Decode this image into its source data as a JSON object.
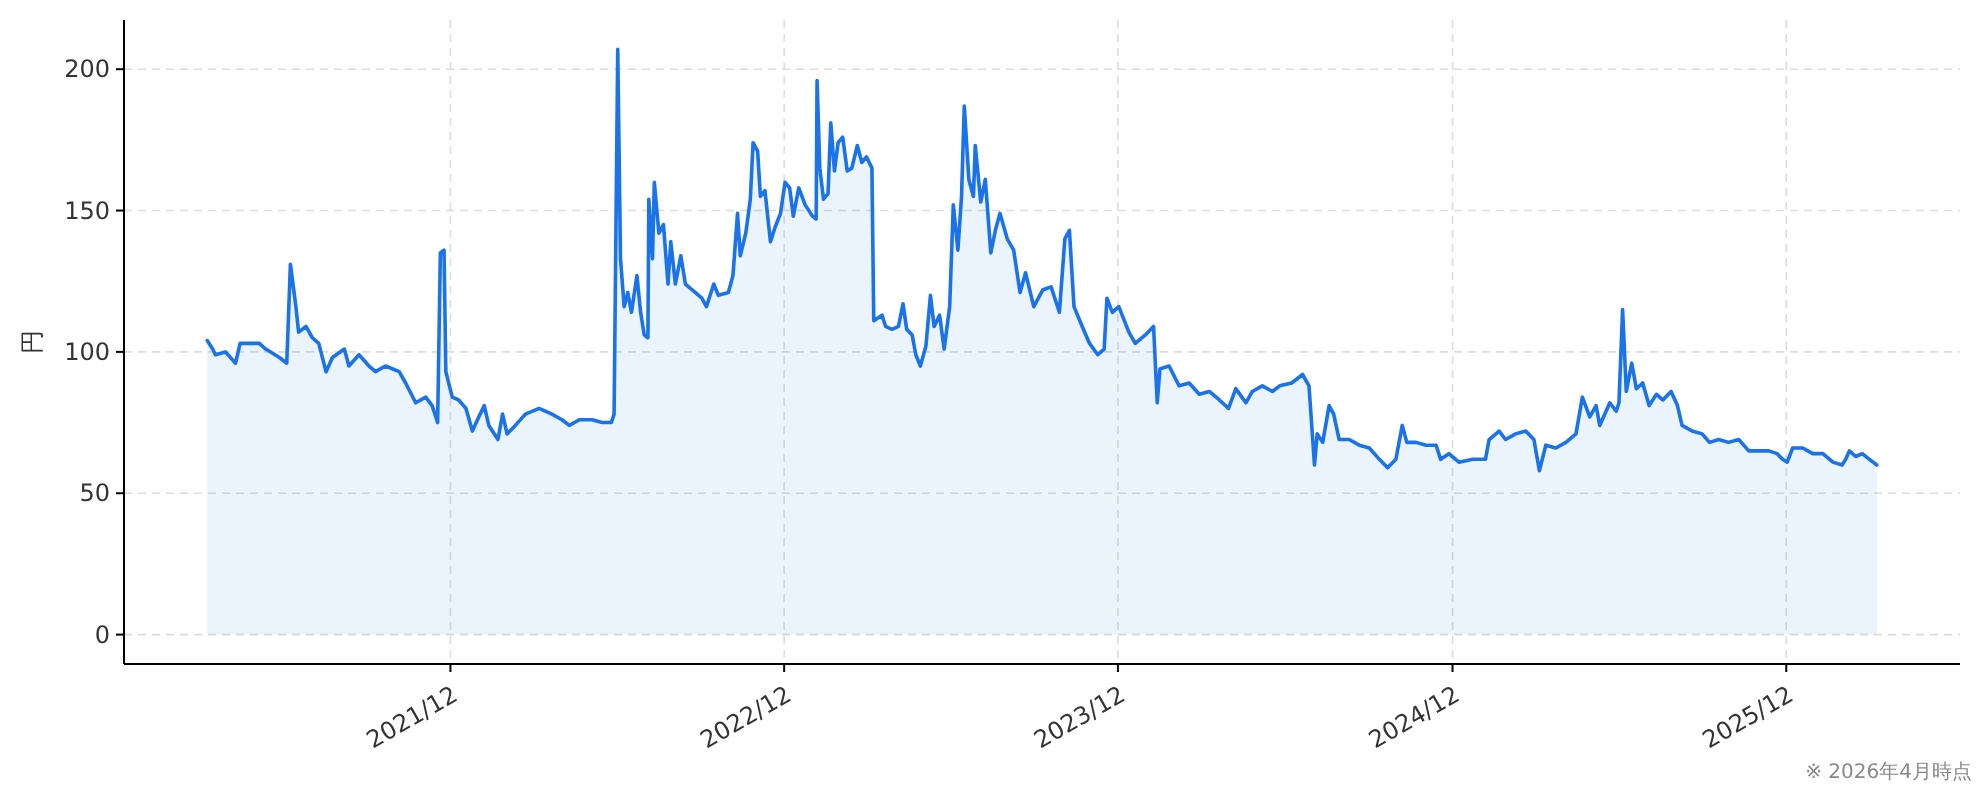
{
  "chart_data": {
    "type": "area",
    "ylabel": "円",
    "annotations": [
      "※ 2026年4月時点"
    ],
    "x": [
      "2021-03-10",
      "2021-03-16",
      "2021-03-19",
      "2021-03-30",
      "2021-04-10",
      "2021-04-15",
      "2021-05-06",
      "2021-05-13",
      "2021-05-28",
      "2021-06-05",
      "2021-06-09",
      "2021-06-15",
      "2021-06-18",
      "2021-06-26",
      "2021-07-03",
      "2021-07-10",
      "2021-07-18",
      "2021-07-25",
      "2021-08-07",
      "2021-08-12",
      "2021-08-23",
      "2021-09-03",
      "2021-09-10",
      "2021-09-21",
      "2021-10-06",
      "2021-10-13",
      "2021-10-24",
      "2021-11-04",
      "2021-11-11",
      "2021-11-17",
      "2021-11-20",
      "2021-11-24",
      "2021-11-26",
      "2021-12-03",
      "2021-12-10",
      "2021-12-18",
      "2021-12-25",
      "2022-01-01",
      "2022-01-07",
      "2022-01-12",
      "2022-01-22",
      "2022-01-27",
      "2022-02-01",
      "2022-02-10",
      "2022-02-21",
      "2022-03-08",
      "2022-03-22",
      "2022-04-02",
      "2022-04-10",
      "2022-04-21",
      "2022-05-05",
      "2022-05-16",
      "2022-05-26",
      "2022-05-29",
      "2022-06-02",
      "2022-06-05",
      "2022-06-09",
      "2022-06-13",
      "2022-06-17",
      "2022-06-23",
      "2022-06-27",
      "2022-07-01",
      "2022-07-05",
      "2022-07-06",
      "2022-07-10",
      "2022-07-12",
      "2022-07-17",
      "2022-07-22",
      "2022-07-27",
      "2022-07-30",
      "2022-08-04",
      "2022-08-10",
      "2022-08-15",
      "2022-08-26",
      "2022-09-02",
      "2022-09-07",
      "2022-09-15",
      "2022-09-20",
      "2022-10-01",
      "2022-10-06",
      "2022-10-11",
      "2022-10-14",
      "2022-10-20",
      "2022-10-25",
      "2022-10-28",
      "2022-11-02",
      "2022-11-05",
      "2022-11-10",
      "2022-11-16",
      "2022-11-21",
      "2022-11-27",
      "2022-12-02",
      "2022-12-07",
      "2022-12-11",
      "2022-12-17",
      "2022-12-24",
      "2023-01-01",
      "2023-01-05",
      "2023-01-06",
      "2023-01-09",
      "2023-01-13",
      "2023-01-18",
      "2023-01-21",
      "2023-01-25",
      "2023-01-29",
      "2023-02-03",
      "2023-02-08",
      "2023-02-13",
      "2023-02-19",
      "2023-02-24",
      "2023-03-01",
      "2023-03-07",
      "2023-03-09",
      "2023-03-18",
      "2023-03-22",
      "2023-03-29",
      "2023-04-05",
      "2023-04-10",
      "2023-04-14",
      "2023-04-20",
      "2023-04-24",
      "2023-04-29",
      "2023-05-05",
      "2023-05-10",
      "2023-05-14",
      "2023-05-20",
      "2023-05-25",
      "2023-05-31",
      "2023-06-04",
      "2023-06-09",
      "2023-06-13",
      "2023-06-16",
      "2023-06-21",
      "2023-06-26",
      "2023-06-28",
      "2023-07-04",
      "2023-07-09",
      "2023-07-15",
      "2023-07-20",
      "2023-07-25",
      "2023-08-02",
      "2023-08-09",
      "2023-08-16",
      "2023-08-22",
      "2023-08-31",
      "2023-09-10",
      "2023-09-19",
      "2023-09-28",
      "2023-10-04",
      "2023-10-09",
      "2023-10-14",
      "2023-10-23",
      "2023-10-31",
      "2023-11-09",
      "2023-11-16",
      "2023-11-19",
      "2023-11-25",
      "2023-12-02",
      "2023-12-13",
      "2023-12-20",
      "2023-12-31",
      "2024-01-09",
      "2024-01-13",
      "2024-01-16",
      "2024-01-26",
      "2024-02-06",
      "2024-02-17",
      "2024-02-28",
      "2024-03-10",
      "2024-03-21",
      "2024-03-31",
      "2024-04-08",
      "2024-04-19",
      "2024-04-26",
      "2024-05-07",
      "2024-05-18",
      "2024-05-26",
      "2024-06-08",
      "2024-06-20",
      "2024-06-27",
      "2024-07-03",
      "2024-07-06",
      "2024-07-12",
      "2024-07-19",
      "2024-07-24",
      "2024-07-30",
      "2024-08-10",
      "2024-08-21",
      "2024-09-01",
      "2024-09-12",
      "2024-09-21",
      "2024-09-30",
      "2024-10-07",
      "2024-10-12",
      "2024-10-22",
      "2024-11-02",
      "2024-11-13",
      "2024-11-18",
      "2024-11-27",
      "2024-12-08",
      "2024-12-23",
      "2025-01-06",
      "2025-01-10",
      "2025-01-21",
      "2025-01-28",
      "2025-02-08",
      "2025-02-19",
      "2025-02-28",
      "2025-03-06",
      "2025-03-13",
      "2025-03-24",
      "2025-04-04",
      "2025-04-15",
      "2025-04-22",
      "2025-04-30",
      "2025-05-07",
      "2025-05-11",
      "2025-05-22",
      "2025-05-29",
      "2025-06-01",
      "2025-06-05",
      "2025-06-09",
      "2025-06-15",
      "2025-06-20",
      "2025-06-27",
      "2025-07-04",
      "2025-07-12",
      "2025-07-19",
      "2025-07-28",
      "2025-08-04",
      "2025-08-09",
      "2025-08-20",
      "2025-08-31",
      "2025-09-08",
      "2025-09-18",
      "2025-09-29",
      "2025-10-10",
      "2025-10-21",
      "2025-11-01",
      "2025-11-12",
      "2025-11-21",
      "2025-11-27",
      "2025-12-02",
      "2025-12-08",
      "2025-12-19",
      "2025-12-30",
      "2026-01-10",
      "2026-01-21",
      "2026-01-31",
      "2026-02-04",
      "2026-02-08",
      "2026-02-15",
      "2026-02-22",
      "2026-03-02",
      "2026-03-10"
    ],
    "series": [
      {
        "color": "#1a73e8",
        "values": [
          104,
          101,
          99,
          100,
          96,
          103,
          103,
          101,
          98,
          96,
          131,
          116,
          107,
          109,
          105,
          103,
          93,
          98,
          101,
          95,
          99,
          95,
          93,
          95,
          93,
          89,
          82,
          84,
          81,
          75,
          135,
          136,
          93,
          84,
          83,
          80,
          72,
          77,
          81,
          74,
          69,
          78,
          71,
          74,
          78,
          80,
          78,
          76,
          74,
          76,
          76,
          75,
          75,
          78,
          207,
          133,
          116,
          121,
          114,
          127,
          114,
          106,
          105,
          154,
          133,
          160,
          142,
          145,
          124,
          139,
          124,
          134,
          124,
          121,
          119,
          116,
          124,
          120,
          121,
          127,
          149,
          134,
          142,
          154,
          174,
          171,
          155,
          157,
          139,
          144,
          149,
          160,
          158,
          148,
          158,
          152,
          148,
          147,
          196,
          165,
          154,
          156,
          181,
          164,
          174,
          176,
          164,
          165,
          173,
          167,
          169,
          165,
          111,
          113,
          109,
          108,
          109,
          117,
          108,
          106,
          99,
          95,
          102,
          120,
          109,
          113,
          101,
          116,
          152,
          136,
          155,
          187,
          161,
          155,
          173,
          153,
          161,
          135,
          143,
          149,
          140,
          136,
          121,
          128,
          116,
          122,
          123,
          114,
          140,
          143,
          116,
          109,
          103,
          99,
          101,
          119,
          114,
          116,
          107,
          103,
          106,
          109,
          82,
          94,
          95,
          88,
          89,
          85,
          86,
          83,
          80,
          87,
          82,
          86,
          88,
          86,
          88,
          89,
          92,
          88,
          60,
          71,
          68,
          81,
          78,
          69,
          69,
          67,
          66,
          62,
          59,
          62,
          74,
          68,
          68,
          67,
          67,
          62,
          64,
          61,
          62,
          62,
          69,
          72,
          69,
          71,
          72,
          69,
          58,
          67,
          66,
          68,
          71,
          84,
          77,
          81,
          74,
          82,
          79,
          82,
          115,
          86,
          96,
          87,
          89,
          81,
          85,
          83,
          86,
          81,
          74,
          72,
          71,
          68,
          69,
          68,
          69,
          65,
          65,
          65,
          64,
          62,
          61,
          66,
          66,
          64,
          64,
          61,
          60,
          62,
          65,
          63,
          64,
          62,
          60
        ]
      }
    ],
    "xlim": [
      "2020-12-09",
      "2026-06-09"
    ],
    "xticks": [
      {
        "value": "2021-12-01",
        "label": "2021/12"
      },
      {
        "value": "2022-12-01",
        "label": "2022/12"
      },
      {
        "value": "2023-12-01",
        "label": "2023/12"
      },
      {
        "value": "2024-12-01",
        "label": "2024/12"
      },
      {
        "value": "2025-12-01",
        "label": "2025/12"
      }
    ],
    "ylim": [
      -10.4,
      217.4
    ],
    "yticks": [
      0,
      50,
      100,
      150,
      200
    ],
    "grid": true
  }
}
